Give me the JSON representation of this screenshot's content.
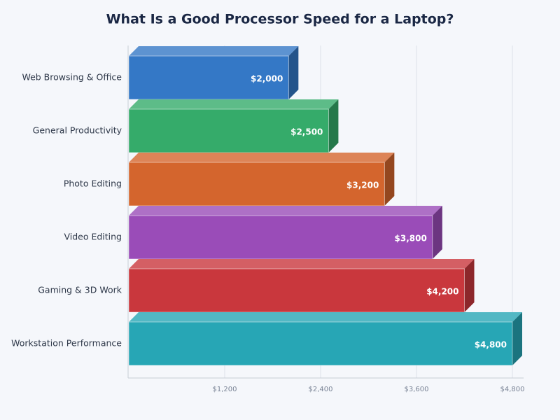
{
  "chart_data": {
    "type": "bar3d-horizontal",
    "title": "What Is a Good Processor Speed for a Laptop?",
    "categories": [
      "Web Browsing & Office",
      "General Productivity",
      "Photo Editing",
      "Video Editing",
      "Gaming & 3D Work",
      "Workstation Performance"
    ],
    "values": [
      2000,
      2500,
      3200,
      3800,
      4200,
      4800
    ],
    "value_labels": [
      "$2,000",
      "$2,500",
      "$3,200",
      "$3,800",
      "$4,200",
      "$4,800"
    ],
    "colors": [
      "#3478c6",
      "#35ab6a",
      "#d4652d",
      "#9a4cb8",
      "#c9373d",
      "#27a6b5"
    ],
    "xlim": [
      0,
      4800
    ],
    "xticks": [
      {
        "value": 1200,
        "label": "$1,200"
      },
      {
        "value": 2400,
        "label": "$2,400"
      },
      {
        "value": 3600,
        "label": "$3,600"
      },
      {
        "value": 4800,
        "label": "$4,800"
      }
    ],
    "grid": true
  }
}
